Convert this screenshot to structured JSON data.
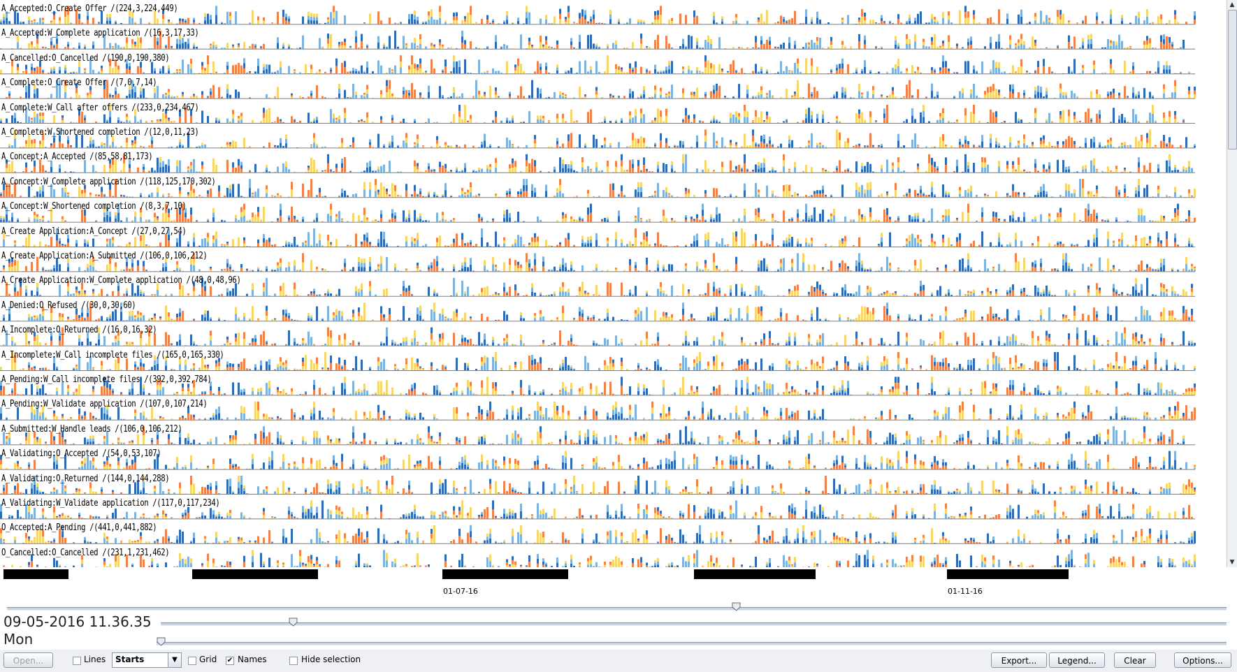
{
  "rows": [
    {
      "label": "A_Accepted:O_Create Offer  /(224,3,224,449)"
    },
    {
      "label": "A_Accepted:W_Complete application  /(16,3,17,33)"
    },
    {
      "label": "A_Cancelled:O_Cancelled  /(190,0,190,380)"
    },
    {
      "label": "A_Complete:O_Create Offer  /(7,0,7,14)"
    },
    {
      "label": "A_Complete:W_Call after offers  /(233,0,234,467)"
    },
    {
      "label": "A_Complete:W_Shortened completion   /(12,0,11,23)"
    },
    {
      "label": "A_Concept:A_Accepted  /(85,58,81,173)"
    },
    {
      "label": "A_Concept:W_Complete application  /(118,125,170,302)"
    },
    {
      "label": "A_Concept:W_Shortened completion   /(8,3,7,10)"
    },
    {
      "label": "A_Create Application:A_Concept  /(27,0,27,54)"
    },
    {
      "label": "A_Create Application:A_Submitted  /(106,0,106,212)"
    },
    {
      "label": "A_Create Application:W_Complete application  /(48,0,48,96)"
    },
    {
      "label": "A_Denied:O_Refused  /(30,0,30,60)"
    },
    {
      "label": "A_Incomplete:O_Returned  /(16,0,16,32)"
    },
    {
      "label": "A_Incomplete:W_Call incomplete files  /(165,0,165,330)"
    },
    {
      "label": "A_Pending:W_Call incomplete files  /(392,0,392,784)"
    },
    {
      "label": "A_Pending:W_Validate application  /(107,0,107,214)"
    },
    {
      "label": "A_Submitted:W_Handle leads  /(106,0,106,212)"
    },
    {
      "label": "A_Validating:O_Accepted  /(54,0,53,107)"
    },
    {
      "label": "A_Validating:O_Returned  /(144,0,144,288)"
    },
    {
      "label": "A_Validating:W_Validate application  /(117,0,117,234)"
    },
    {
      "label": "O_Accepted:A_Pending  /(441,0,441,882)"
    },
    {
      "label": "O_Cancelled:O_Cancelled  /(231,1,231,462)"
    }
  ],
  "colors": {
    "dark_blue": "#2e6bb4",
    "light_blue": "#7eb3dd",
    "yellow": "#f5d76e",
    "orange": "#f0834a",
    "row_divider": "#7f7f7f"
  },
  "timeline": {
    "tick_labels": [
      "01-07-16",
      "01-11-16"
    ]
  },
  "status": {
    "datetime": "09-05-2016 11.36.35",
    "weekday": "Mon"
  },
  "toolbar": {
    "open_label": "Open...",
    "lines_label": "Lines",
    "starts_value": "Starts",
    "grid_label": "Grid",
    "names_label": "Names",
    "hide_selection_label": "Hide selection",
    "export_label": "Export...",
    "legend_label": "Legend...",
    "clear_label": "Clear",
    "options_label": "Options...",
    "lines_checked": false,
    "grid_checked": false,
    "names_checked": true,
    "hide_selection_checked": false
  },
  "icons": {
    "scroll_up": "arrow-up-icon",
    "scroll_down": "arrow-down-icon",
    "combo_dropdown": "chevron-down-icon",
    "checkmark": "check-icon"
  }
}
